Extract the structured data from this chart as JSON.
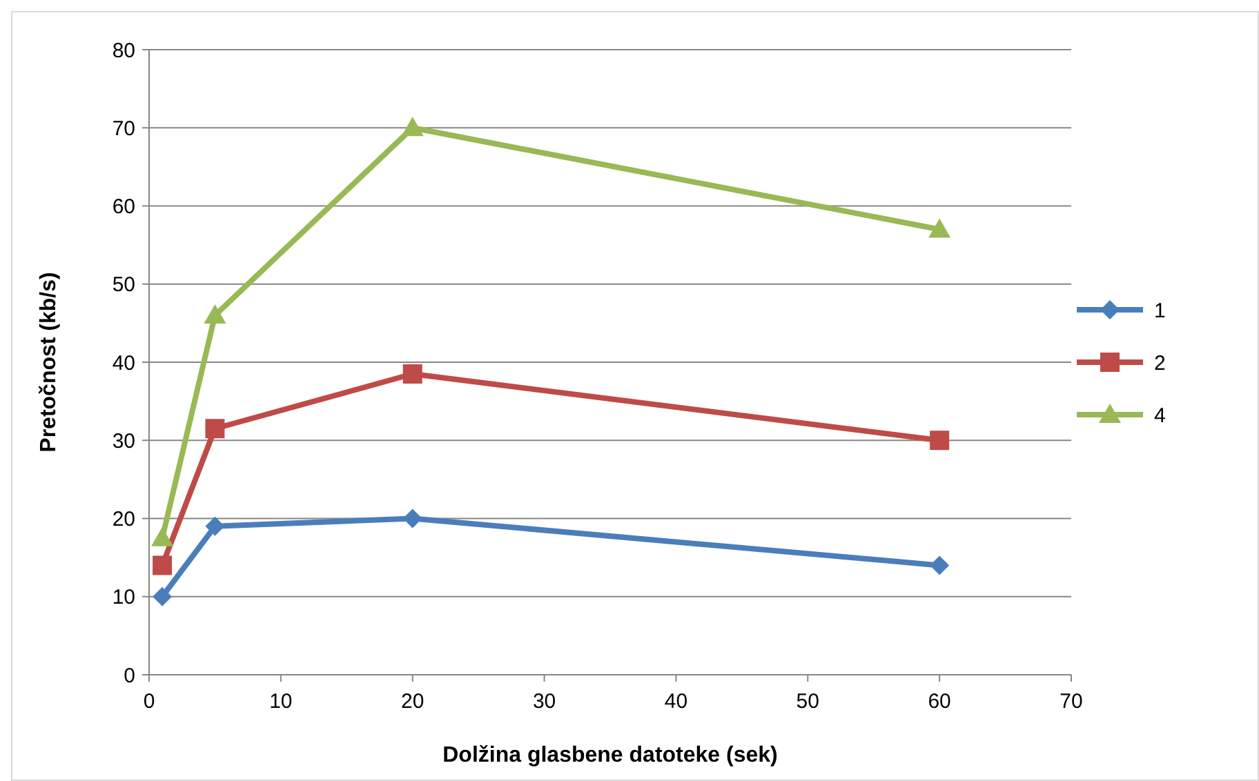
{
  "chart_data": {
    "type": "line",
    "xlabel": "Dolžina glasbene datoteke (sek)",
    "ylabel": "Pretočnost (kb/s)",
    "x": [
      1,
      5,
      20,
      60
    ],
    "series": [
      {
        "name": "1",
        "color": "#4a7ebb",
        "marker": "diamond",
        "values": [
          10,
          19,
          20,
          14
        ]
      },
      {
        "name": "2",
        "color": "#be4b48",
        "marker": "square",
        "values": [
          14,
          31.5,
          38.5,
          30
        ]
      },
      {
        "name": "4",
        "color": "#98b954",
        "marker": "triangle",
        "values": [
          17.5,
          46,
          70,
          57
        ]
      }
    ],
    "xlim": [
      0,
      70
    ],
    "xticks": [
      0,
      10,
      20,
      30,
      40,
      50,
      60,
      70
    ],
    "ylim": [
      0,
      80
    ],
    "yticks": [
      0,
      10,
      20,
      30,
      40,
      50,
      60,
      70,
      80
    ],
    "grid": "y",
    "legend": "right",
    "line_style": "solid"
  }
}
